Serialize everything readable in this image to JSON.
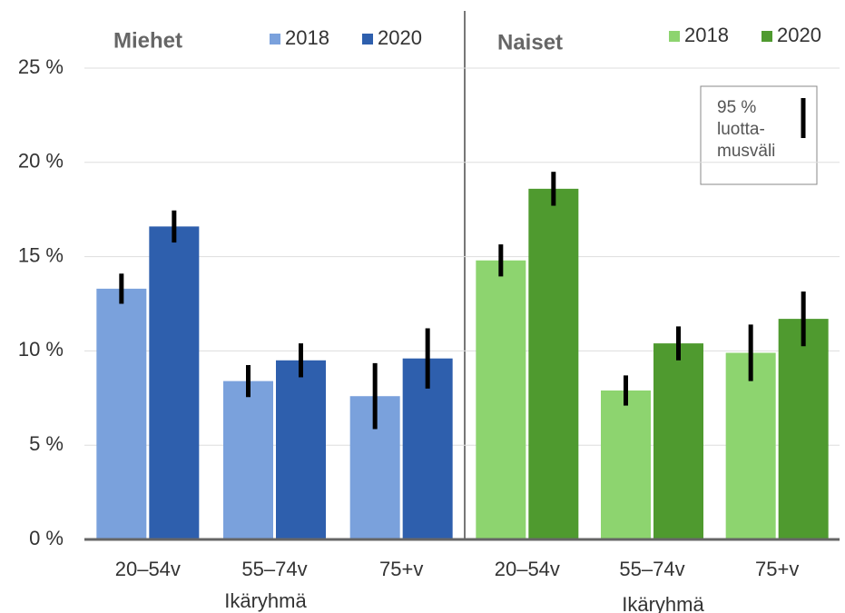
{
  "chart_data": [
    {
      "type": "bar",
      "title": "Miehet",
      "xlabel": "Ikäryhmä",
      "categories": [
        "20–54v",
        "55–74v",
        "75+v"
      ],
      "series": [
        {
          "name": "2018",
          "color": "#7aa1dc",
          "values": [
            13.3,
            8.4,
            7.6
          ],
          "errors": [
            0.8,
            0.85,
            1.75
          ]
        },
        {
          "name": "2020",
          "color": "#2e5fad",
          "values": [
            16.6,
            9.5,
            9.6
          ],
          "errors": [
            0.85,
            0.9,
            1.6
          ]
        }
      ],
      "ylim": [
        0,
        25
      ],
      "yticks": [
        {
          "value": 0,
          "label": "0 %"
        },
        {
          "value": 5,
          "label": "5 %"
        },
        {
          "value": 10,
          "label": "10 %"
        },
        {
          "value": 15,
          "label": "15 %"
        },
        {
          "value": 20,
          "label": "20 %"
        },
        {
          "value": 25,
          "label": "25 %"
        }
      ],
      "grid": true
    },
    {
      "type": "bar",
      "title": "Naiset",
      "xlabel": "Ikäryhmä",
      "categories": [
        "20–54v",
        "55–74v",
        "75+v"
      ],
      "series": [
        {
          "name": "2018",
          "color": "#8dd46f",
          "values": [
            14.8,
            7.9,
            9.9
          ],
          "errors": [
            0.85,
            0.8,
            1.5
          ]
        },
        {
          "name": "2020",
          "color": "#4f9a2f",
          "values": [
            18.6,
            10.4,
            11.7
          ],
          "errors": [
            0.9,
            0.9,
            1.45
          ]
        }
      ],
      "ylim": [
        0,
        25
      ],
      "annotation": [
        "95 %",
        "luotta-",
        "musväli"
      ]
    }
  ]
}
